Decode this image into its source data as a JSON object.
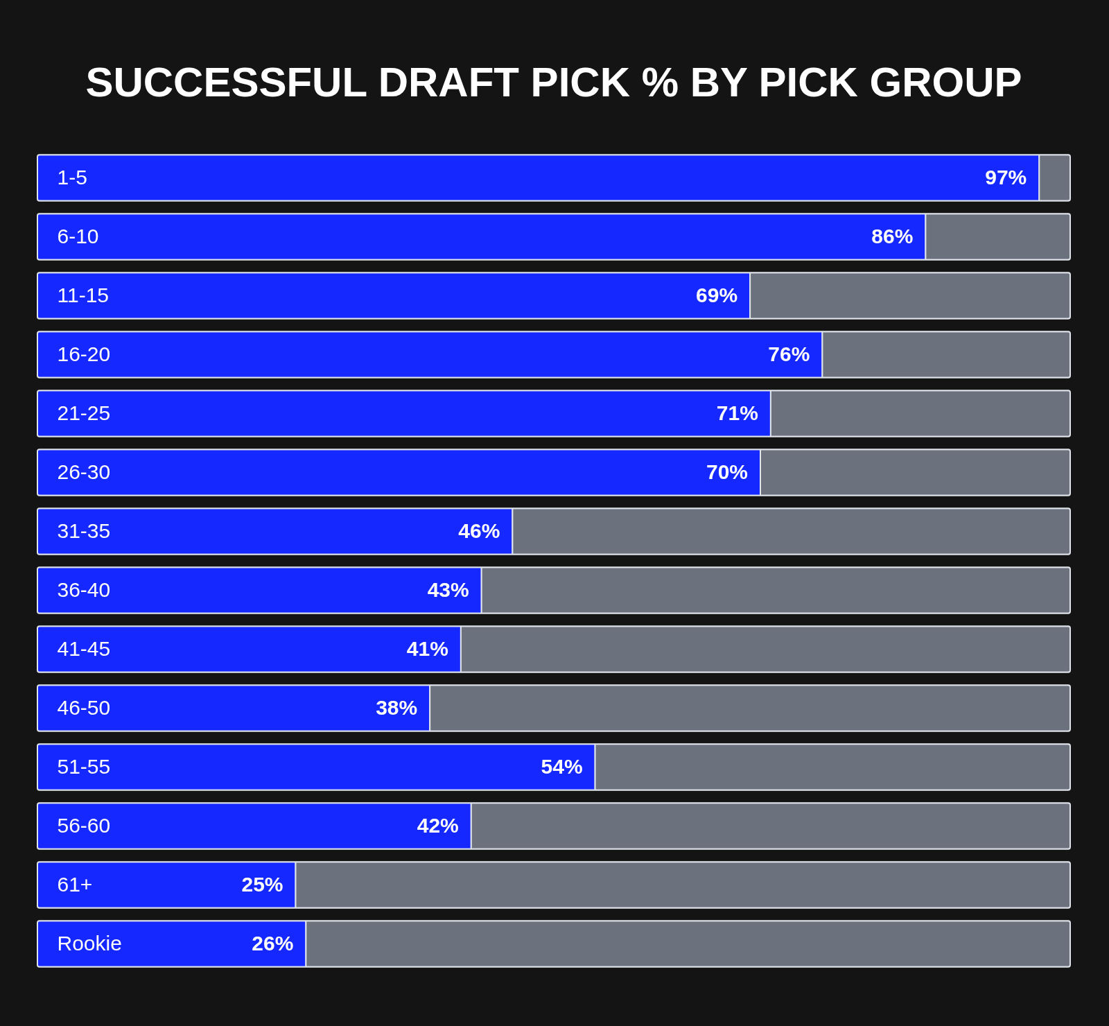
{
  "chart_data": {
    "type": "bar",
    "title": "SUCCESSFUL DRAFT PICK % BY PICK GROUP",
    "orientation": "horizontal",
    "stacked": true,
    "categories": [
      "1-5",
      "6-10",
      "11-15",
      "16-20",
      "21-25",
      "26-30",
      "31-35",
      "36-40",
      "41-45",
      "46-50",
      "51-55",
      "56-60",
      "61+",
      "Rookie"
    ],
    "series": [
      {
        "color": "#1428ff",
        "values": [
          97,
          86,
          69,
          76,
          71,
          70,
          46,
          43,
          41,
          38,
          54,
          42,
          25,
          26
        ],
        "value_labels": [
          "97%",
          "86%",
          "69%",
          "76%",
          "71%",
          "70%",
          "46%",
          "43%",
          "41%",
          "38%",
          "54%",
          "42%",
          "25%",
          "26%"
        ]
      },
      {
        "color": "#6b727d",
        "values": [
          3,
          14,
          31,
          24,
          29,
          30,
          54,
          57,
          59,
          62,
          46,
          58,
          75,
          74
        ]
      }
    ]
  }
}
